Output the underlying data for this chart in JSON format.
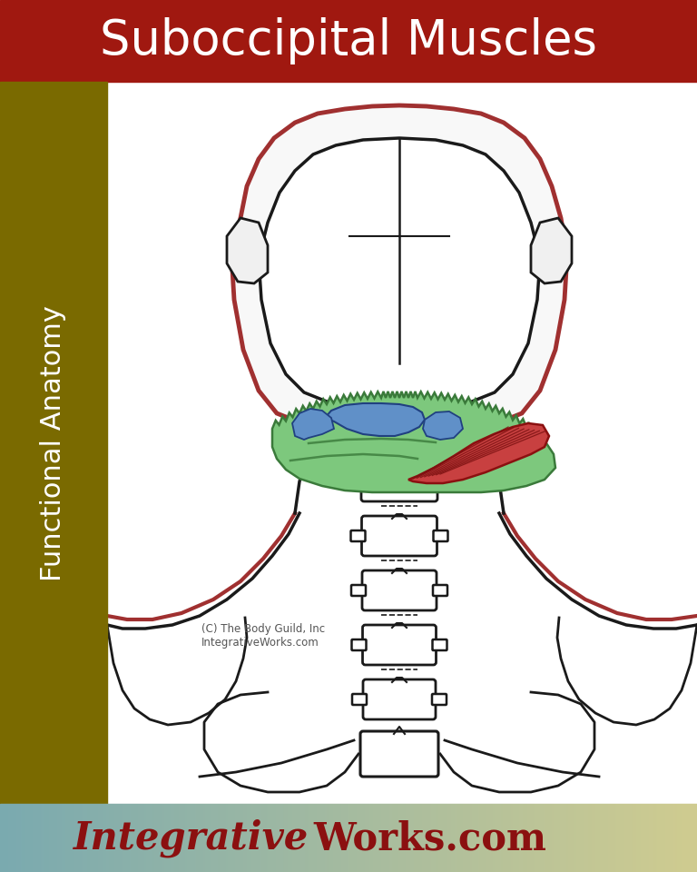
{
  "title": "Suboccipital Muscles",
  "sidebar_text": "Functional Anatomy",
  "title_bg": "#A01810",
  "sidebar_bg": "#7A6A00",
  "main_bg": "#FFFFFF",
  "title_text_color": "#FFFFFF",
  "sidebar_text_color": "#FFFFFF",
  "footer_text_color": "#8B1010",
  "body_outline_dark": "#1A1A1A",
  "body_outline_red": "#A03030",
  "muscle_green": "#7DC87D",
  "muscle_green_edge": "#3A7A3A",
  "muscle_red": "#C84040",
  "muscle_red_edge": "#8B1010",
  "muscle_blue": "#6090C8",
  "muscle_blue_edge": "#204080",
  "copyright_text": "(C) The Body Guild, Inc\nIntegrativeWorks.com",
  "footer_color_left": "#7AAAB0",
  "footer_color_mid": "#A8C090",
  "footer_color_right": "#D0CC90"
}
